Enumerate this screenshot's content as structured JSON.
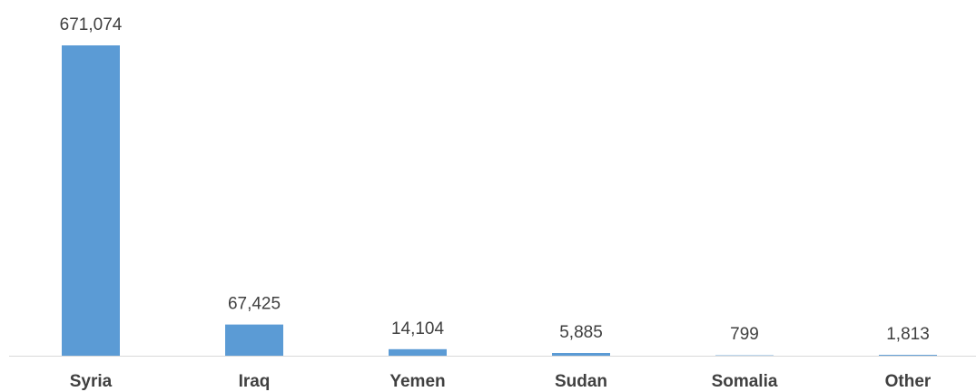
{
  "chart_data": {
    "type": "bar",
    "categories": [
      "Syria",
      "Iraq",
      "Yemen",
      "Sudan",
      "Somalia",
      "Other"
    ],
    "values": [
      671074,
      67425,
      14104,
      5885,
      799,
      1813
    ],
    "value_labels": [
      "671,074",
      "67,425",
      "14,104",
      "5,885",
      "799",
      "1,813"
    ],
    "color": "#5b9bd5"
  }
}
